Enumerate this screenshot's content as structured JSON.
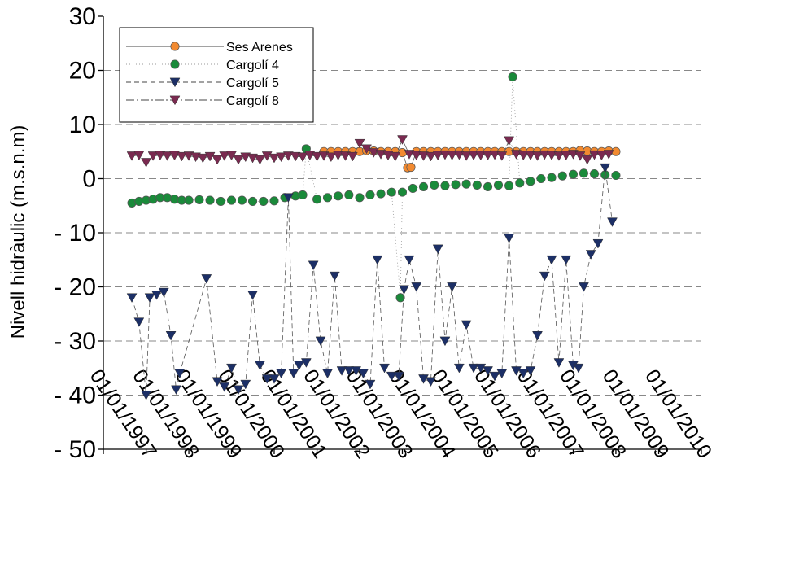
{
  "chart_data": {
    "type": "scatter",
    "title": "",
    "xlabel": "",
    "ylabel": "Nivell hidràulic (m.s.n.m)",
    "ylim": [
      -50,
      30
    ],
    "yticks": [
      30,
      20,
      10,
      0,
      -10,
      -20,
      -30,
      -40,
      -50
    ],
    "ytick_labels": [
      "30",
      "20",
      "10",
      "0",
      "- 10",
      "- 20",
      "- 30",
      "- 40",
      "- 50"
    ],
    "xlim": [
      "1996-01-01",
      "2010-01-01"
    ],
    "xtick_labels": [
      "01/01/1997",
      "01/01/1998",
      "01/01/1999",
      "01/01/2000",
      "01/01/2001",
      "01/01/2002",
      "01/01/2003",
      "01/01/2004",
      "01/01/2005",
      "01/01/2006",
      "01/01/2007",
      "01/01/2008",
      "01/01/2009",
      "01/01/2010"
    ],
    "grid": "horizontal dashed",
    "legend_position": "top-left",
    "series": [
      {
        "name": "Ses Arenes",
        "color": "#f28a30",
        "marker": "circle",
        "line": "solid",
        "x": [
          "2001-03-01",
          "2001-05-01",
          "2001-07-01",
          "2001-09-01",
          "2001-11-01",
          "2002-01-01",
          "2002-03-01",
          "2002-05-01",
          "2002-07-01",
          "2002-09-01",
          "2002-11-01",
          "2003-01-01",
          "2003-02-15",
          "2003-03-15",
          "2003-05-01",
          "2003-07-01",
          "2003-09-01",
          "2003-11-01",
          "2004-01-01",
          "2004-03-01",
          "2004-05-01",
          "2004-07-01",
          "2004-09-01",
          "2004-11-01",
          "2005-01-01",
          "2005-03-01",
          "2005-05-01",
          "2005-07-01",
          "2005-09-01",
          "2005-11-01",
          "2006-01-01",
          "2006-03-01",
          "2006-05-01",
          "2006-07-01",
          "2006-09-01",
          "2006-11-01",
          "2007-01-01",
          "2007-03-01",
          "2007-05-01",
          "2007-07-01",
          "2007-09-01",
          "2007-11-01",
          "2008-01-01"
        ],
        "y": [
          5,
          5,
          5,
          5,
          5,
          5,
          5.2,
          5.1,
          5,
          5,
          5,
          4.8,
          2,
          2.1,
          5,
          5,
          5,
          5,
          5,
          5,
          5,
          5,
          5,
          5,
          5,
          5,
          5,
          5,
          5,
          5,
          5,
          5,
          5,
          5,
          5,
          5,
          5,
          5.2,
          5.1,
          5,
          5,
          5.1,
          5
        ]
      },
      {
        "name": "Cargolí 4",
        "color": "#1a8a3a",
        "marker": "circle",
        "line": "dotted",
        "x": [
          "1996-09-01",
          "1996-11-01",
          "1997-01-01",
          "1997-03-01",
          "1997-05-01",
          "1997-07-01",
          "1997-09-01",
          "1997-11-01",
          "1998-01-01",
          "1998-04-01",
          "1998-07-01",
          "1998-10-01",
          "1999-01-01",
          "1999-04-01",
          "1999-07-01",
          "1999-10-01",
          "2000-01-01",
          "2000-04-01",
          "2000-07-01",
          "2000-09-01",
          "2000-10-01",
          "2001-01-01",
          "2001-04-01",
          "2001-07-01",
          "2001-10-01",
          "2002-01-01",
          "2002-04-01",
          "2002-07-01",
          "2002-10-01",
          "2002-12-15",
          "2003-01-01",
          "2003-04-01",
          "2003-07-01",
          "2003-10-01",
          "2004-01-01",
          "2004-04-01",
          "2004-07-01",
          "2004-10-01",
          "2005-01-01",
          "2005-04-01",
          "2005-07-01",
          "2005-08-01",
          "2005-10-01",
          "2006-01-01",
          "2006-04-01",
          "2006-07-01",
          "2006-10-01",
          "2007-01-01",
          "2007-04-01",
          "2007-07-01",
          "2007-10-01",
          "2008-01-01"
        ],
        "y": [
          -4.5,
          -4.2,
          -4,
          -3.8,
          -3.5,
          -3.5,
          -3.8,
          -4,
          -4,
          -3.9,
          -4,
          -4.2,
          -4,
          -4,
          -4.2,
          -4.2,
          -4.1,
          -3.5,
          -3.2,
          -3,
          5.5,
          -3.8,
          -3.5,
          -3.2,
          -3,
          -3.5,
          -3,
          -2.8,
          -2.5,
          -22,
          -2.5,
          -1.8,
          -1.5,
          -1.2,
          -1.3,
          -1.1,
          -1,
          -1.2,
          -1.5,
          -1.2,
          -1.3,
          18.8,
          -0.8,
          -0.5,
          0,
          0.2,
          0.5,
          0.8,
          1,
          0.9,
          0.7,
          0.6
        ]
      },
      {
        "name": "Cargolí 5",
        "color": "#1c2f66",
        "marker": "triangle-down",
        "line": "dashed",
        "x": [
          "1996-09-01",
          "1996-11-01",
          "1997-01-01",
          "1997-02-01",
          "1997-04-01",
          "1997-06-01",
          "1997-08-01",
          "1997-09-15",
          "1997-10-15",
          "1998-06-01",
          "1998-09-01",
          "1998-11-01",
          "1999-01-01",
          "1999-03-01",
          "1999-05-01",
          "1999-07-01",
          "1999-09-01",
          "1999-11-01",
          "2000-01-01",
          "2000-03-01",
          "2000-05-01",
          "2000-06-15",
          "2000-08-01",
          "2000-10-01",
          "2000-12-01",
          "2001-02-01",
          "2001-04-01",
          "2001-06-01",
          "2001-08-01",
          "2001-10-01",
          "2001-12-01",
          "2002-02-01",
          "2002-04-01",
          "2002-06-01",
          "2002-08-01",
          "2002-10-01",
          "2002-12-01",
          "2003-01-15",
          "2003-03-01",
          "2003-05-01",
          "2003-07-01",
          "2003-09-01",
          "2003-11-01",
          "2004-01-01",
          "2004-03-01",
          "2004-05-01",
          "2004-07-01",
          "2004-09-01",
          "2004-11-01",
          "2005-01-01",
          "2005-03-01",
          "2005-05-01",
          "2005-07-01",
          "2005-09-01",
          "2005-11-01",
          "2006-01-01",
          "2006-03-01",
          "2006-05-01",
          "2006-07-01",
          "2006-09-01",
          "2006-11-01",
          "2007-01-01",
          "2007-02-15",
          "2007-04-01",
          "2007-06-01",
          "2007-08-01",
          "2007-10-01",
          "2007-12-01"
        ],
        "y": [
          -22,
          -26.5,
          -40,
          -22,
          -21.5,
          -21,
          -29,
          -39,
          -36,
          -18.5,
          -37.5,
          -38.5,
          -35,
          -39,
          -38,
          -21.5,
          -34.5,
          -37,
          -37,
          -36,
          -3.5,
          -36,
          -34.5,
          -34,
          -16,
          -30,
          -36,
          -18,
          -35.5,
          -35.5,
          -35.5,
          -36,
          -38,
          -15,
          -35,
          -36.5,
          -36.5,
          -20.5,
          -15,
          -20,
          -37,
          -37.5,
          -13,
          -30,
          -20,
          -35,
          -27,
          -35,
          -35,
          -35.5,
          -36.5,
          -36,
          -11,
          -35.5,
          -36,
          -35.5,
          -29,
          -18,
          -15,
          -34,
          -15,
          -34.5,
          -35,
          -20,
          -14,
          -12,
          2,
          -8
        ]
      },
      {
        "name": "Cargolí 8",
        "color": "#7a2a50",
        "marker": "triangle-down",
        "line": "dash-dot",
        "x": [
          "1996-09-01",
          "1996-11-01",
          "1997-01-01",
          "1997-03-01",
          "1997-05-01",
          "1997-07-01",
          "1997-09-01",
          "1997-11-01",
          "1998-01-01",
          "1998-03-01",
          "1998-05-01",
          "1998-07-01",
          "1998-09-01",
          "1998-11-01",
          "1999-01-01",
          "1999-03-01",
          "1999-05-01",
          "1999-07-01",
          "1999-09-01",
          "1999-11-01",
          "2000-01-01",
          "2000-03-01",
          "2000-05-01",
          "2000-07-01",
          "2000-09-01",
          "2000-11-01",
          "2001-01-01",
          "2001-03-01",
          "2001-05-01",
          "2001-07-01",
          "2001-09-01",
          "2001-11-01",
          "2002-01-01",
          "2002-03-01",
          "2002-05-01",
          "2002-07-01",
          "2002-09-01",
          "2002-11-01",
          "2003-01-01",
          "2003-03-01",
          "2003-05-01",
          "2003-07-01",
          "2003-09-01",
          "2003-11-01",
          "2004-01-01",
          "2004-03-01",
          "2004-05-01",
          "2004-07-01",
          "2004-09-01",
          "2004-11-01",
          "2005-01-01",
          "2005-03-01",
          "2005-05-01",
          "2005-07-01",
          "2005-09-01",
          "2005-11-01",
          "2006-01-01",
          "2006-03-01",
          "2006-05-01",
          "2006-07-01",
          "2006-09-01",
          "2006-11-01",
          "2007-01-01",
          "2007-03-01",
          "2007-05-01",
          "2007-07-01",
          "2007-09-01",
          "2007-11-01"
        ],
        "y": [
          4.2,
          4.3,
          3,
          4.2,
          4.3,
          4.2,
          4.3,
          4.1,
          4.2,
          4,
          3.8,
          4.1,
          3.5,
          4.2,
          4.3,
          3.5,
          4,
          3.8,
          3.5,
          4.2,
          3.8,
          4,
          4.2,
          4.1,
          4,
          4.3,
          4.1,
          4.2,
          4,
          4.3,
          4.2,
          4.1,
          6.5,
          5.5,
          4.8,
          4.5,
          4.3,
          4.1,
          7.2,
          4.5,
          4.3,
          4.2,
          4.1,
          4.3,
          4.4,
          4.3,
          4.4,
          4.2,
          4.3,
          4.3,
          4.3,
          4.4,
          4.2,
          7,
          4.5,
          4.3,
          4.3,
          4.2,
          4.4,
          4.3,
          4.2,
          4.3,
          4.5,
          4.2,
          3.5,
          4.4,
          4.3,
          4.5
        ]
      }
    ]
  }
}
